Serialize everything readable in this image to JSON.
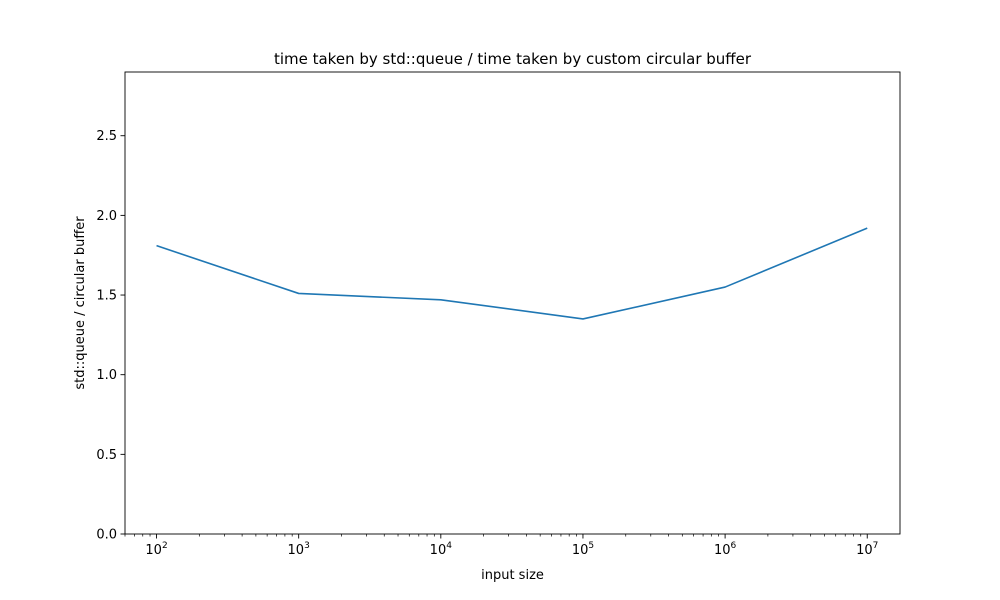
{
  "chart_data": {
    "type": "line",
    "title": "time taken by std::queue / time taken by custom circular buffer",
    "xlabel": "input size",
    "ylabel": "std::queue / circular buffer",
    "x_scale": "log",
    "xlim": [
      60,
      17000000
    ],
    "ylim": [
      0,
      2.9
    ],
    "x_ticks": [
      {
        "value": 100,
        "base": "10",
        "exp": "2"
      },
      {
        "value": 1000,
        "base": "10",
        "exp": "3"
      },
      {
        "value": 10000,
        "base": "10",
        "exp": "4"
      },
      {
        "value": 100000,
        "base": "10",
        "exp": "5"
      },
      {
        "value": 1000000,
        "base": "10",
        "exp": "6"
      },
      {
        "value": 10000000,
        "base": "10",
        "exp": "7"
      }
    ],
    "y_ticks": [
      "0.0",
      "0.5",
      "1.0",
      "1.5",
      "2.0",
      "2.5"
    ],
    "grid": false,
    "series": [
      {
        "color": "#1f77b4",
        "x": [
          100,
          1000,
          10000,
          100000,
          1000000,
          10000000
        ],
        "y": [
          1.81,
          1.51,
          1.47,
          1.35,
          1.55,
          1.92
        ]
      }
    ]
  }
}
